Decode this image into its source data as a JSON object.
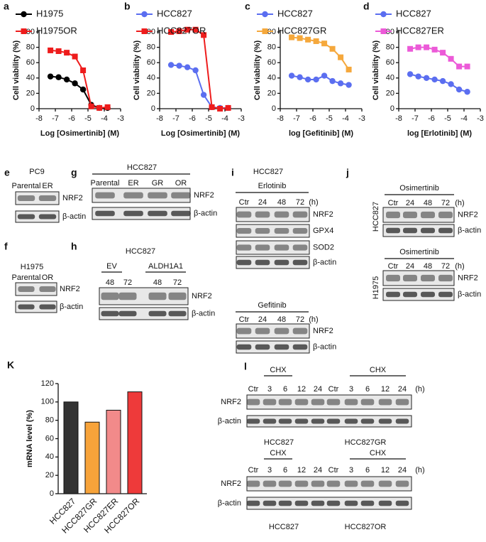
{
  "chart_data": [
    {
      "type": "line",
      "panel": "a",
      "x": [
        -7.3,
        -6.8,
        -6.3,
        -5.8,
        -5.3,
        -4.8,
        -4.3,
        -3.8
      ],
      "xlabel": "Log [Osimertinib] (M)",
      "ylabel": "Cell viability (%)",
      "xlim": [
        -8,
        -3
      ],
      "xticks": [
        -8,
        -7,
        -6,
        -5,
        -4,
        -3
      ],
      "ylim": [
        0,
        100
      ],
      "yticks": [
        0,
        20,
        40,
        60,
        80,
        100
      ],
      "series": [
        {
          "name": "H1975",
          "color": "#000000",
          "marker": "circle",
          "values": [
            42,
            41,
            38,
            33,
            25,
            5,
            1,
            1
          ]
        },
        {
          "name": "H1975OR",
          "color": "#ee1c1c",
          "marker": "square",
          "values": [
            76,
            75,
            73,
            68,
            50,
            3,
            1,
            2
          ]
        }
      ]
    },
    {
      "type": "line",
      "panel": "b",
      "x": [
        -7.3,
        -6.8,
        -6.3,
        -5.8,
        -5.3,
        -4.8,
        -4.3,
        -3.8
      ],
      "xlabel": "Log [Osimertinib] (M)",
      "ylabel": "Cell viability (%)",
      "xlim": [
        -8,
        -3
      ],
      "xticks": [
        -8,
        -7,
        -6,
        -5,
        -4,
        -3
      ],
      "ylim": [
        0,
        100
      ],
      "yticks": [
        0,
        20,
        40,
        60,
        80,
        100
      ],
      "series": [
        {
          "name": "HCC827",
          "color": "#5b6ef0",
          "marker": "circle",
          "values": [
            57,
            56,
            54,
            50,
            18,
            2,
            1,
            1
          ]
        },
        {
          "name": "HCC827OR",
          "color": "#ee1c1c",
          "marker": "square",
          "values": [
            100,
            101,
            103,
            103,
            96,
            2,
            0,
            1
          ]
        }
      ]
    },
    {
      "type": "line",
      "panel": "c",
      "x": [
        -7.3,
        -6.8,
        -6.3,
        -5.8,
        -5.3,
        -4.8,
        -4.3,
        -3.8
      ],
      "xlabel": "log [Gefitinib] (M)",
      "ylabel": "Cell viability (%)",
      "xlim": [
        -8,
        -3
      ],
      "xticks": [
        -8,
        -7,
        -6,
        -5,
        -4,
        -3
      ],
      "ylim": [
        0,
        100
      ],
      "yticks": [
        0,
        20,
        40,
        60,
        80,
        100
      ],
      "series": [
        {
          "name": "HCC827",
          "color": "#5b6ef0",
          "marker": "circle",
          "values": [
            43,
            41,
            38,
            38,
            43,
            36,
            33,
            31
          ]
        },
        {
          "name": "HCC827GR",
          "color": "#f5a83c",
          "marker": "square",
          "values": [
            93,
            92,
            90,
            88,
            85,
            78,
            67,
            51
          ]
        }
      ]
    },
    {
      "type": "line",
      "panel": "d",
      "x": [
        -7.3,
        -6.8,
        -6.3,
        -5.8,
        -5.3,
        -4.8,
        -4.3,
        -3.8
      ],
      "xlabel": "log [Erlotinib] (M)",
      "ylabel": "Cell viability (%)",
      "xlim": [
        -8,
        -3
      ],
      "xticks": [
        -8,
        -7,
        -6,
        -5,
        -4,
        -3
      ],
      "ylim": [
        0,
        100
      ],
      "yticks": [
        0,
        20,
        40,
        60,
        80,
        100
      ],
      "series": [
        {
          "name": "HCC827",
          "color": "#5b6ef0",
          "marker": "circle",
          "values": [
            45,
            42,
            40,
            38,
            36,
            32,
            25,
            22
          ]
        },
        {
          "name": "HCC827ER",
          "color": "#ec5ad8",
          "marker": "square",
          "values": [
            78,
            80,
            80,
            77,
            73,
            65,
            55,
            55
          ]
        }
      ]
    },
    {
      "type": "bar",
      "panel": "K",
      "categories": [
        "HCC827",
        "HCC827GR",
        "HCC827ER",
        "HCC827OR"
      ],
      "values": [
        100,
        78,
        91,
        111
      ],
      "colors": [
        "#333333",
        "#f7a33a",
        "#f28a8a",
        "#ee3a3a"
      ],
      "ylabel": "mRNA level (%)",
      "ylim": [
        0,
        120
      ],
      "yticks": [
        0,
        20,
        40,
        60,
        80,
        100,
        120
      ]
    }
  ],
  "blots": {
    "e": {
      "label": "e",
      "title": "PC9",
      "lanes": [
        "Parental",
        "ER"
      ],
      "rows": [
        "NRF2",
        "β-actin"
      ]
    },
    "g": {
      "label": "g",
      "title": "HCC827",
      "lanes": [
        "Parental",
        "ER",
        "GR",
        "OR"
      ],
      "rows": [
        "NRF2",
        "β-actin"
      ]
    },
    "f": {
      "label": "f",
      "title": "H1975",
      "lanes": [
        "Parental",
        "OR"
      ],
      "rows": [
        "NRF2",
        "β-actin"
      ]
    },
    "h": {
      "label": "h",
      "title": "HCC827",
      "groups": [
        "EV",
        "ALDH1A1"
      ],
      "lanes": [
        "48",
        "72",
        "48",
        "72"
      ],
      "rows": [
        "NRF2",
        "β-actin"
      ]
    },
    "i": {
      "label": "i",
      "title": "HCC827",
      "blots": [
        {
          "treatment": "Erlotinib",
          "lanes": [
            "Ctr",
            "24",
            "48",
            "72"
          ],
          "unit": "(h)",
          "rows": [
            "NRF2",
            "GPX4",
            "SOD2",
            "β-actin"
          ]
        },
        {
          "treatment": "Gefitinib",
          "lanes": [
            "Ctr",
            "24",
            "48",
            "72"
          ],
          "unit": "(h)",
          "rows": [
            "NRF2",
            "β-actin"
          ]
        }
      ]
    },
    "j": {
      "label": "j",
      "blots": [
        {
          "cell": "HCC827",
          "treatment": "Osimertinib",
          "lanes": [
            "Ctr",
            "24",
            "48",
            "72"
          ],
          "unit": "(h)",
          "rows": [
            "NRF2",
            "β-actin"
          ]
        },
        {
          "cell": "H1975",
          "treatment": "Osimertinib",
          "lanes": [
            "Ctr",
            "24",
            "48",
            "72"
          ],
          "unit": "(h)",
          "rows": [
            "NRF2",
            "β-actin"
          ]
        }
      ]
    },
    "l": {
      "label": "l",
      "blots": [
        {
          "groups": [
            "CHX",
            "CHX"
          ],
          "lanes": [
            "Ctr",
            "3",
            "6",
            "12",
            "24",
            "Ctr",
            "3",
            "6",
            "12",
            "24"
          ],
          "unit": "(h)",
          "rows": [
            "NRF2",
            "β-actin"
          ],
          "cells": [
            "HCC827",
            "HCC827GR"
          ]
        },
        {
          "groups": [
            "CHX",
            "CHX"
          ],
          "lanes": [
            "Ctr",
            "3",
            "6",
            "12",
            "24",
            "Ctr",
            "3",
            "6",
            "12",
            "24"
          ],
          "unit": "(h)",
          "rows": [
            "NRF2",
            "β-actin"
          ],
          "cells": [
            "HCC827",
            "HCC827OR"
          ]
        }
      ]
    }
  }
}
